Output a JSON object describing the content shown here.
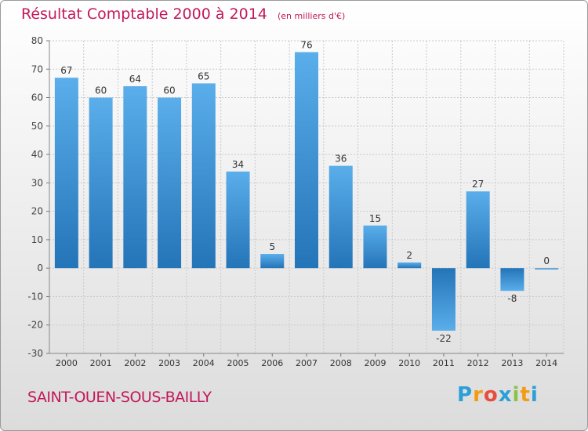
{
  "chart_data": {
    "type": "bar",
    "title": "Résultat Comptable 2000 à 2014",
    "subtitle": "(en milliers d'€)",
    "categories": [
      "2000",
      "2001",
      "2002",
      "2003",
      "2004",
      "2005",
      "2006",
      "2007",
      "2008",
      "2009",
      "2010",
      "2011",
      "2012",
      "2013",
      "2014"
    ],
    "values": [
      67,
      60,
      64,
      60,
      65,
      34,
      5,
      76,
      36,
      15,
      2,
      -22,
      27,
      -8,
      0
    ],
    "ylim": [
      -30,
      80
    ],
    "yticks": [
      -30,
      -20,
      -10,
      0,
      10,
      20,
      30,
      40,
      50,
      60,
      70,
      80
    ],
    "grid": true,
    "bar_color": "#3d8fd6"
  },
  "place_name": "SAINT-OUEN-SOUS-BAILLY",
  "logo": {
    "letters": [
      "P",
      "r",
      "o",
      "x",
      "i",
      "t",
      "i"
    ],
    "colors": [
      "#2a9fd8",
      "#f39c12",
      "#e74c3c",
      "#2a9fd8",
      "#8bc34a",
      "#f39c12",
      "#2a9fd8"
    ]
  }
}
